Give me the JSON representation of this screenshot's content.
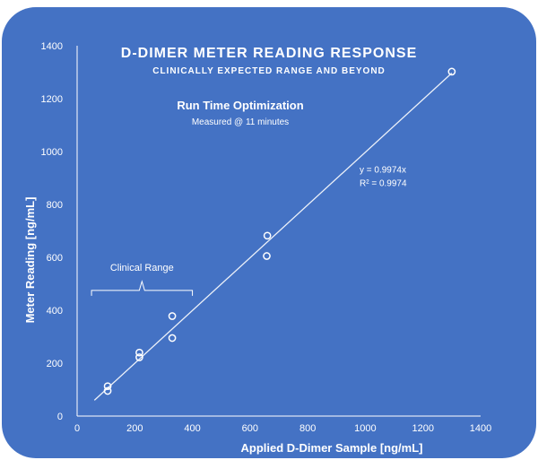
{
  "chart_data": {
    "type": "scatter",
    "title": "D-DIMER METER READING RESPONSE",
    "subtitle": "CLINICALLY EXPECTED RANGE AND BEYOND",
    "annotation_title": "Run Time Optimization",
    "annotation_subtitle": "Measured @ 11 minutes",
    "xlabel": "Applied D-Dimer Sample  [ng/mL]",
    "ylabel": "Meter Reading  [ng/mL]",
    "xlim": [
      0,
      1400
    ],
    "ylim": [
      0,
      1400
    ],
    "x_ticks": [
      0,
      200,
      400,
      600,
      800,
      1000,
      1200,
      1400
    ],
    "y_ticks": [
      0,
      200,
      400,
      600,
      800,
      1000,
      1200,
      1400
    ],
    "x_tick_labels": [
      "0",
      "200",
      "400",
      "600",
      "800",
      "1000",
      "1200",
      "1400"
    ],
    "y_tick_labels": [
      "0",
      "200",
      "400",
      "600",
      "800",
      "1000",
      "1200",
      "1400"
    ],
    "grid": false,
    "series": [
      {
        "points": [
          {
            "x": 106,
            "y": 95
          },
          {
            "x": 106,
            "y": 113
          },
          {
            "x": 216,
            "y": 222
          },
          {
            "x": 216,
            "y": 240
          },
          {
            "x": 330,
            "y": 295
          },
          {
            "x": 330,
            "y": 378
          },
          {
            "x": 658,
            "y": 605
          },
          {
            "x": 660,
            "y": 682
          },
          {
            "x": 1300,
            "y": 1302
          }
        ]
      }
    ],
    "trendline": {
      "type": "linear",
      "x_range": [
        60,
        1300
      ],
      "slope": 0.9974,
      "equation_label": "y = 0.9974x",
      "r2_label": "R² = 0.9974"
    },
    "range_annotation": {
      "label": "Clinical Range",
      "x_range": [
        50,
        400
      ]
    },
    "colors": {
      "panel_background": "#4472c4",
      "foreground": "#ffffff"
    }
  }
}
